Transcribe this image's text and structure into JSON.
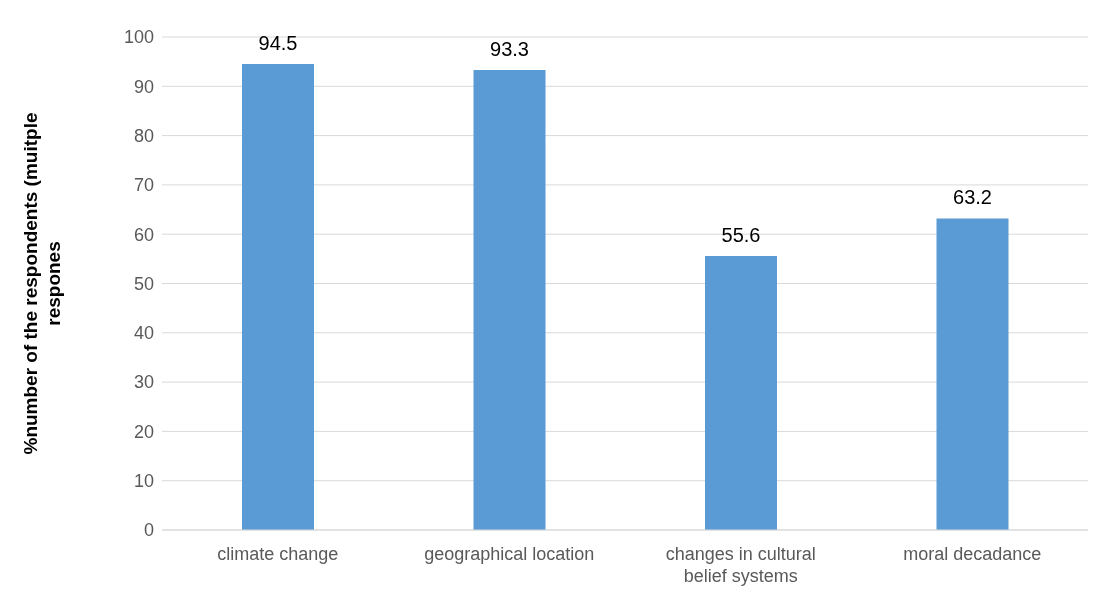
{
  "chart_data": {
    "type": "bar",
    "ylabel": "%number of the respondents (muitple respones",
    "categories": [
      "climate change",
      "geographical location",
      "changes in cultural belief systems",
      "moral decadance"
    ],
    "values": [
      94.5,
      93.3,
      55.6,
      63.2
    ],
    "color": "#5b9bd5",
    "ylim": [
      0,
      100
    ],
    "yticks": [
      0,
      10,
      20,
      30,
      40,
      50,
      60,
      70,
      80,
      90,
      100
    ],
    "grid": "y",
    "data_labels": true
  }
}
